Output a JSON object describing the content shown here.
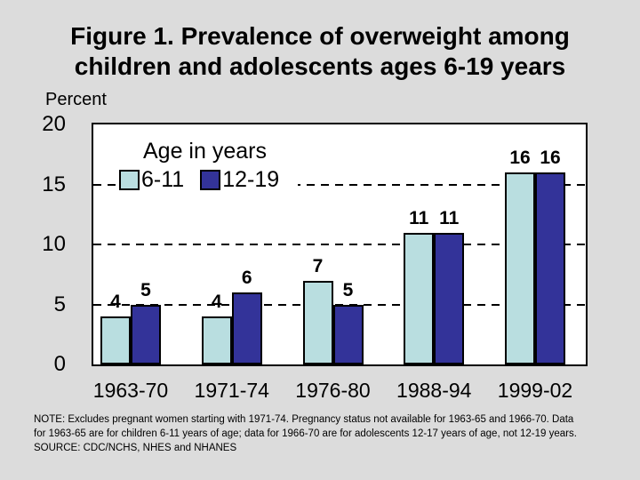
{
  "slide": {
    "background": "#dcdcdc",
    "title_lines": [
      "Figure 1. Prevalence of overweight among",
      "children and adolescents ages 6-19 years"
    ],
    "note_lines": [
      "NOTE:  Excludes pregnant women starting with 1971-74.  Pregnancy status not available for 1963-65 and 1966-70.  Data",
      "for 1963-65 are for children 6-11 years of age; data for 1966-70 are for adolescents 12-17 years of age, not 12-19 years.",
      "SOURCE: CDC/NCHS, NHES and NHANES"
    ]
  },
  "chart_data": {
    "type": "bar",
    "title": "Figure 1. Prevalence of overweight among children and adolescents ages 6-19 years",
    "ylabel": "Percent",
    "xlabel": "",
    "categories": [
      "1963-70",
      "1971-74",
      "1976-80",
      "1988-94",
      "1999-02"
    ],
    "series": [
      {
        "name": "6-11",
        "color": "#b9dee0",
        "values": [
          4,
          4,
          7,
          11,
          16
        ]
      },
      {
        "name": "12-19",
        "color": "#333399",
        "values": [
          5,
          6,
          5,
          11,
          16
        ]
      }
    ],
    "legend_title": "Age in years",
    "legend_position": "top-left-inside",
    "ylim": [
      0,
      20
    ],
    "yticks": [
      0,
      5,
      10,
      15,
      20
    ],
    "gridlines": [
      5,
      10,
      15
    ],
    "grid_style": "dashed",
    "data_labels": true,
    "bar_border_color": "#000000",
    "plot_background": "#ffffff"
  }
}
